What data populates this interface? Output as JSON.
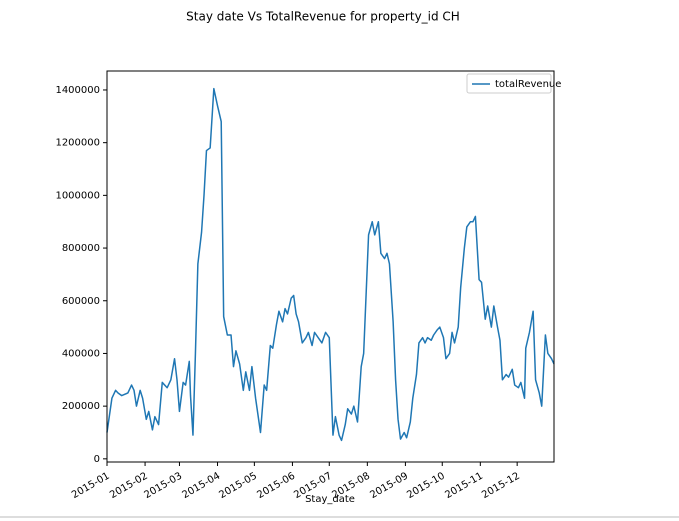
{
  "chart_data": {
    "type": "line",
    "title": "Stay date Vs TotalRevenue for property_id CH",
    "x_label": "Stay_date",
    "x": [
      0,
      4,
      7,
      9,
      12,
      17,
      20,
      22,
      24,
      27,
      29,
      32,
      34,
      37,
      39,
      42,
      45,
      49,
      52,
      55,
      57,
      59,
      62,
      64,
      67,
      68,
      70,
      72,
      74,
      77,
      79,
      81,
      84,
      87,
      90,
      93,
      95,
      98,
      101,
      103,
      105,
      108,
      111,
      113,
      116,
      118,
      121,
      125,
      128,
      130,
      133,
      135,
      138,
      140,
      143,
      145,
      147,
      150,
      152,
      154,
      156,
      159,
      162,
      164,
      167,
      169,
      172,
      175,
      178,
      181,
      184,
      186,
      189,
      191,
      194,
      196,
      199,
      201,
      204,
      207,
      209,
      213,
      216,
      218,
      221,
      223,
      226,
      228,
      230,
      233,
      235,
      237,
      239,
      242,
      244,
      247,
      249,
      252,
      254,
      257,
      259,
      261,
      264,
      266,
      269,
      271,
      274,
      276,
      279,
      281,
      283,
      286,
      288,
      291,
      293,
      296,
      298,
      300,
      303,
      305,
      308,
      310,
      313,
      315,
      318,
      320,
      322,
      325,
      327,
      330,
      332,
      335,
      337,
      340,
      341,
      344,
      347,
      349,
      352,
      354,
      357,
      359,
      362,
      364
    ],
    "series": [
      {
        "name": "totalRevenue",
        "color": "#1f77b4",
        "values": [
          100000,
          230000,
          260000,
          250000,
          240000,
          250000,
          280000,
          260000,
          200000,
          260000,
          230000,
          150000,
          180000,
          110000,
          160000,
          130000,
          290000,
          270000,
          300000,
          380000,
          300000,
          180000,
          290000,
          280000,
          370000,
          240000,
          90000,
          400000,
          740000,
          860000,
          1000000,
          1170000,
          1180000,
          1405000,
          1340000,
          1280000,
          540000,
          470000,
          470000,
          350000,
          410000,
          360000,
          260000,
          330000,
          260000,
          350000,
          230000,
          100000,
          280000,
          260000,
          430000,
          420000,
          510000,
          560000,
          520000,
          570000,
          550000,
          610000,
          620000,
          550000,
          520000,
          440000,
          460000,
          480000,
          430000,
          480000,
          460000,
          440000,
          480000,
          460000,
          90000,
          160000,
          90000,
          70000,
          130000,
          190000,
          170000,
          200000,
          140000,
          350000,
          400000,
          850000,
          900000,
          850000,
          900000,
          780000,
          760000,
          780000,
          740000,
          520000,
          300000,
          150000,
          75000,
          100000,
          80000,
          140000,
          230000,
          320000,
          440000,
          460000,
          440000,
          460000,
          450000,
          470000,
          490000,
          500000,
          460000,
          380000,
          400000,
          480000,
          440000,
          500000,
          650000,
          800000,
          880000,
          900000,
          900000,
          920000,
          680000,
          670000,
          530000,
          580000,
          500000,
          580000,
          500000,
          450000,
          300000,
          320000,
          310000,
          340000,
          280000,
          270000,
          290000,
          230000,
          420000,
          480000,
          560000,
          300000,
          250000,
          200000,
          470000,
          400000,
          380000,
          360000
        ]
      }
    ],
    "xlim": [
      0,
      364
    ],
    "xticks": [
      {
        "value": 0,
        "label": "2015-01"
      },
      {
        "value": 31,
        "label": "2015-02"
      },
      {
        "value": 59,
        "label": "2015-03"
      },
      {
        "value": 90,
        "label": "2015-04"
      },
      {
        "value": 120,
        "label": "2015-05"
      },
      {
        "value": 151,
        "label": "2015-06"
      },
      {
        "value": 181,
        "label": "2015-07"
      },
      {
        "value": 212,
        "label": "2015-08"
      },
      {
        "value": 243,
        "label": "2015-09"
      },
      {
        "value": 273,
        "label": "2015-10"
      },
      {
        "value": 304,
        "label": "2015-11"
      },
      {
        "value": 334,
        "label": "2015-12"
      }
    ],
    "ylim": [
      -12000,
      1472000
    ],
    "yticks": [
      0,
      200000,
      400000,
      600000,
      800000,
      1000000,
      1200000,
      1400000
    ],
    "grid": false,
    "legend": "upper right"
  }
}
